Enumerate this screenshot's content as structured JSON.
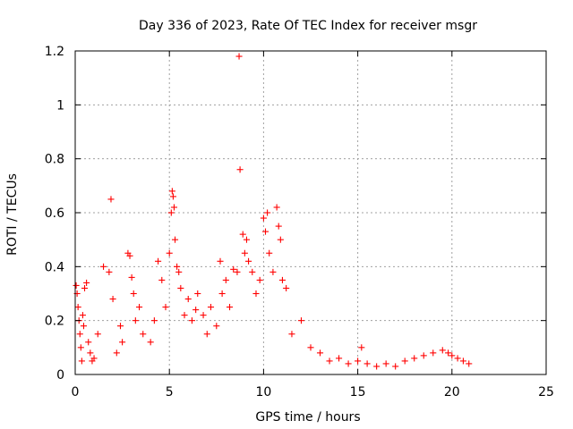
{
  "chart_data": {
    "type": "scatter",
    "title": "Day 336 of 2023, Rate Of TEC Index for receiver msgr",
    "xlabel": "GPS time / hours",
    "ylabel": "ROTI / TECUs",
    "xlim": [
      0,
      25
    ],
    "ylim": [
      0,
      1.2
    ],
    "xticks": [
      0,
      5,
      10,
      15,
      20,
      25
    ],
    "yticks": [
      0,
      0.2,
      0.4,
      0.6,
      0.8,
      1,
      1.2
    ],
    "xtick_labels": [
      "0",
      "5",
      "10",
      "15",
      "20",
      "25"
    ],
    "ytick_labels": [
      "0",
      "0.2",
      "0.4",
      "0.6",
      "0.8",
      "1",
      "1.2"
    ],
    "grid": true,
    "legend": "none",
    "marker": "plus",
    "series_color": "#ff0000",
    "series": [
      {
        "points": [
          [
            0.05,
            0.33
          ],
          [
            0.1,
            0.3
          ],
          [
            0.15,
            0.25
          ],
          [
            0.2,
            0.2
          ],
          [
            0.25,
            0.15
          ],
          [
            0.3,
            0.1
          ],
          [
            0.35,
            0.05
          ],
          [
            0.4,
            0.22
          ],
          [
            0.45,
            0.18
          ],
          [
            0.5,
            0.32
          ],
          [
            0.6,
            0.34
          ],
          [
            0.7,
            0.12
          ],
          [
            0.8,
            0.08
          ],
          [
            0.9,
            0.05
          ],
          [
            1.0,
            0.06
          ],
          [
            1.2,
            0.15
          ],
          [
            1.5,
            0.4
          ],
          [
            1.8,
            0.38
          ],
          [
            1.9,
            0.65
          ],
          [
            2.0,
            0.28
          ],
          [
            2.2,
            0.08
          ],
          [
            2.4,
            0.18
          ],
          [
            2.5,
            0.12
          ],
          [
            2.8,
            0.45
          ],
          [
            2.9,
            0.44
          ],
          [
            3.0,
            0.36
          ],
          [
            3.1,
            0.3
          ],
          [
            3.2,
            0.2
          ],
          [
            3.4,
            0.25
          ],
          [
            3.6,
            0.15
          ],
          [
            4.0,
            0.12
          ],
          [
            4.2,
            0.2
          ],
          [
            4.4,
            0.42
          ],
          [
            4.6,
            0.35
          ],
          [
            4.8,
            0.25
          ],
          [
            5.0,
            0.45
          ],
          [
            5.1,
            0.6
          ],
          [
            5.15,
            0.68
          ],
          [
            5.2,
            0.66
          ],
          [
            5.25,
            0.62
          ],
          [
            5.3,
            0.5
          ],
          [
            5.4,
            0.4
          ],
          [
            5.5,
            0.38
          ],
          [
            5.6,
            0.32
          ],
          [
            5.8,
            0.22
          ],
          [
            6.0,
            0.28
          ],
          [
            6.2,
            0.2
          ],
          [
            6.4,
            0.24
          ],
          [
            6.5,
            0.3
          ],
          [
            6.8,
            0.22
          ],
          [
            7.0,
            0.15
          ],
          [
            7.2,
            0.25
          ],
          [
            7.5,
            0.18
          ],
          [
            7.7,
            0.42
          ],
          [
            7.8,
            0.3
          ],
          [
            8.0,
            0.35
          ],
          [
            8.2,
            0.25
          ],
          [
            8.4,
            0.39
          ],
          [
            8.6,
            0.38
          ],
          [
            8.7,
            1.18
          ],
          [
            8.75,
            0.76
          ],
          [
            8.9,
            0.52
          ],
          [
            9.0,
            0.45
          ],
          [
            9.1,
            0.5
          ],
          [
            9.2,
            0.42
          ],
          [
            9.4,
            0.38
          ],
          [
            9.6,
            0.3
          ],
          [
            9.8,
            0.35
          ],
          [
            10.0,
            0.58
          ],
          [
            10.1,
            0.53
          ],
          [
            10.2,
            0.6
          ],
          [
            10.3,
            0.45
          ],
          [
            10.5,
            0.38
          ],
          [
            10.7,
            0.62
          ],
          [
            10.8,
            0.55
          ],
          [
            10.9,
            0.5
          ],
          [
            11.0,
            0.35
          ],
          [
            11.2,
            0.32
          ],
          [
            11.5,
            0.15
          ],
          [
            12.0,
            0.2
          ],
          [
            12.5,
            0.1
          ],
          [
            13.0,
            0.08
          ],
          [
            13.5,
            0.05
          ],
          [
            14.0,
            0.06
          ],
          [
            14.5,
            0.04
          ],
          [
            15.0,
            0.05
          ],
          [
            15.2,
            0.1
          ],
          [
            15.5,
            0.04
          ],
          [
            16.0,
            0.03
          ],
          [
            16.5,
            0.04
          ],
          [
            17.0,
            0.03
          ],
          [
            17.5,
            0.05
          ],
          [
            18.0,
            0.06
          ],
          [
            18.5,
            0.07
          ],
          [
            19.0,
            0.08
          ],
          [
            19.5,
            0.09
          ],
          [
            19.8,
            0.08
          ],
          [
            20.0,
            0.07
          ],
          [
            20.3,
            0.06
          ],
          [
            20.6,
            0.05
          ],
          [
            20.9,
            0.04
          ]
        ]
      }
    ]
  }
}
